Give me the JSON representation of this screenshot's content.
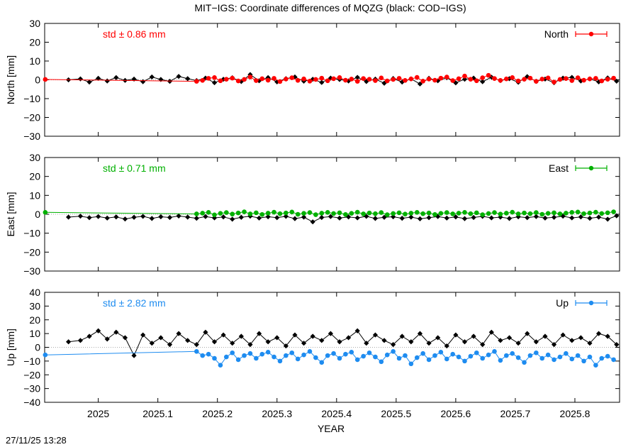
{
  "title": "MIT−IGS: Coordinate differences of MQZG (black: COD−IGS)",
  "footer_timestamp": "27/11/25 13:28",
  "xlabel": "YEAR",
  "colors": {
    "secondary_series": "#000000",
    "reference_line": "#aaaaaa"
  },
  "chart_data": [
    {
      "type": "line",
      "panel": "north",
      "ylabel": "North [mm]",
      "legend": "North",
      "legend_position": "top-right",
      "std_label": "std ± 0.86 mm",
      "color": "#ff0000",
      "xlim": [
        2024.91,
        2025.875
      ],
      "ylim": [
        -30,
        30
      ],
      "yticks": [
        -30,
        -20,
        -10,
        0,
        10,
        20,
        30
      ],
      "xticks": [
        2025,
        2025.1,
        2025.2,
        2025.3,
        2025.4,
        2025.5,
        2025.6,
        2025.7,
        2025.8
      ],
      "xtick_labels": [
        "2025",
        "2025.1",
        "2025.2",
        "2025.3",
        "2025.4",
        "2025.5",
        "2025.6",
        "2025.7",
        "2025.8"
      ],
      "grid": false,
      "series": [
        {
          "role": "MIT-IGS",
          "x": [
            2024.911,
            2025.165,
            2025.175,
            2025.185,
            2025.195,
            2025.205,
            2025.215,
            2025.225,
            2025.235,
            2025.245,
            2025.255,
            2025.265,
            2025.275,
            2025.285,
            2025.295,
            2025.305,
            2025.315,
            2025.325,
            2025.335,
            2025.345,
            2025.355,
            2025.365,
            2025.375,
            2025.385,
            2025.395,
            2025.405,
            2025.415,
            2025.425,
            2025.435,
            2025.445,
            2025.455,
            2025.465,
            2025.475,
            2025.485,
            2025.495,
            2025.505,
            2025.515,
            2025.525,
            2025.535,
            2025.545,
            2025.555,
            2025.565,
            2025.575,
            2025.585,
            2025.595,
            2025.605,
            2025.615,
            2025.625,
            2025.635,
            2025.645,
            2025.655,
            2025.665,
            2025.675,
            2025.685,
            2025.695,
            2025.705,
            2025.715,
            2025.725,
            2025.735,
            2025.745,
            2025.755,
            2025.765,
            2025.775,
            2025.785,
            2025.795,
            2025.805,
            2025.815,
            2025.825,
            2025.835,
            2025.845,
            2025.855,
            2025.865
          ],
          "y": [
            0.2,
            -0.8,
            -0.3,
            0.8,
            1.2,
            -0.5,
            0.3,
            0.9,
            -0.6,
            0.2,
            1.5,
            -0.4,
            0.6,
            -0.2,
            0.8,
            -0.9,
            0.4,
            1.1,
            -0.3,
            0.5,
            -0.7,
            0.2,
            0.9,
            -0.5,
            0.6,
            1.2,
            -0.2,
            0.4,
            -0.8,
            0.7,
            0.3,
            -0.4,
            1.0,
            -0.6,
            0.2,
            0.8,
            -0.3,
            0.5,
            1.3,
            -0.7,
            0.4,
            -0.2,
            0.9,
            1.5,
            -0.4,
            0.6,
            2.0,
            0.3,
            -0.5,
            1.1,
            2.4,
            0.7,
            -0.3,
            0.5,
            1.2,
            -0.6,
            0.3,
            0.9,
            -0.8,
            0.4,
            1.0,
            -1.2,
            0.2,
            0.7,
            -0.4,
            1.1,
            -0.2,
            0.5,
            0.8,
            -0.6,
            0.3,
            0.9
          ]
        },
        {
          "role": "COD-IGS",
          "x": [
            2024.95,
            2024.97,
            2024.985,
            2025.0,
            2025.015,
            2025.03,
            2025.045,
            2025.06,
            2025.075,
            2025.09,
            2025.105,
            2025.12,
            2025.135,
            2025.15,
            2025.165,
            2025.18,
            2025.195,
            2025.21,
            2025.225,
            2025.24,
            2025.255,
            2025.27,
            2025.285,
            2025.3,
            2025.315,
            2025.33,
            2025.345,
            2025.36,
            2025.375,
            2025.39,
            2025.405,
            2025.42,
            2025.435,
            2025.45,
            2025.465,
            2025.48,
            2025.495,
            2025.51,
            2025.525,
            2025.54,
            2025.555,
            2025.57,
            2025.585,
            2025.6,
            2025.615,
            2025.63,
            2025.645,
            2025.66,
            2025.675,
            2025.69,
            2025.705,
            2025.72,
            2025.735,
            2025.75,
            2025.765,
            2025.78,
            2025.795,
            2025.81,
            2025.825,
            2025.84,
            2025.855,
            2025.87
          ],
          "y": [
            0.0,
            0.5,
            -1.2,
            0.8,
            -0.6,
            1.2,
            -0.3,
            0.4,
            -1.0,
            1.5,
            0.2,
            -0.8,
            1.8,
            0.6,
            -0.4,
            0.9,
            -1.5,
            0.3,
            1.1,
            -0.9,
            2.8,
            -0.5,
            1.2,
            -1.1,
            0.6,
            1.5,
            -0.7,
            0.3,
            -1.4,
            0.9,
            0.2,
            -0.6,
            1.3,
            -0.9,
            0.4,
            -1.8,
            0.7,
            -1.2,
            0.5,
            -2.2,
            0.8,
            -0.5,
            1.1,
            -1.6,
            0.3,
            0.9,
            -1.0,
            1.4,
            -0.4,
            0.6,
            -1.3,
            1.7,
            -0.8,
            0.4,
            -1.5,
            0.9,
            1.3,
            -0.6,
            0.5,
            -1.1,
            1.0,
            -0.7
          ]
        }
      ]
    },
    {
      "type": "line",
      "panel": "east",
      "ylabel": "East [mm]",
      "legend": "East",
      "legend_position": "top-right",
      "std_label": "std ± 0.71 mm",
      "color": "#00b000",
      "xlim": [
        2024.91,
        2025.875
      ],
      "ylim": [
        -30,
        30
      ],
      "yticks": [
        -30,
        -20,
        -10,
        0,
        10,
        20,
        30
      ],
      "xticks": [
        2025,
        2025.1,
        2025.2,
        2025.3,
        2025.4,
        2025.5,
        2025.6,
        2025.7,
        2025.8
      ],
      "xtick_labels": [
        "2025",
        "2025.1",
        "2025.2",
        "2025.3",
        "2025.4",
        "2025.5",
        "2025.6",
        "2025.7",
        "2025.8"
      ],
      "grid": false,
      "series": [
        {
          "role": "MIT-IGS",
          "x": [
            2024.911,
            2025.165,
            2025.175,
            2025.185,
            2025.195,
            2025.205,
            2025.215,
            2025.225,
            2025.235,
            2025.245,
            2025.255,
            2025.265,
            2025.275,
            2025.285,
            2025.295,
            2025.305,
            2025.315,
            2025.325,
            2025.335,
            2025.345,
            2025.355,
            2025.365,
            2025.375,
            2025.385,
            2025.395,
            2025.405,
            2025.415,
            2025.425,
            2025.435,
            2025.445,
            2025.455,
            2025.465,
            2025.475,
            2025.485,
            2025.495,
            2025.505,
            2025.515,
            2025.525,
            2025.535,
            2025.545,
            2025.555,
            2025.565,
            2025.575,
            2025.585,
            2025.595,
            2025.605,
            2025.615,
            2025.625,
            2025.635,
            2025.645,
            2025.655,
            2025.665,
            2025.675,
            2025.685,
            2025.695,
            2025.705,
            2025.715,
            2025.725,
            2025.735,
            2025.745,
            2025.755,
            2025.765,
            2025.775,
            2025.785,
            2025.795,
            2025.805,
            2025.815,
            2025.825,
            2025.835,
            2025.845,
            2025.855,
            2025.865
          ],
          "y": [
            1.0,
            0.2,
            0.6,
            1.0,
            -0.3,
            0.5,
            0.9,
            0.1,
            0.7,
            1.3,
            0.2,
            0.8,
            -0.1,
            0.6,
            1.1,
            0.3,
            0.7,
            1.2,
            0.0,
            0.5,
            0.9,
            -0.2,
            0.6,
            1.0,
            0.4,
            0.8,
            -0.1,
            0.5,
            1.1,
            0.2,
            0.7,
            0.3,
            0.9,
            -0.2,
            0.4,
            0.8,
            0.1,
            0.6,
            1.0,
            0.3,
            0.7,
            -0.1,
            0.5,
            0.9,
            0.2,
            0.6,
            1.0,
            0.3,
            0.8,
            -0.2,
            0.4,
            0.9,
            0.1,
            0.6,
            1.1,
            0.2,
            0.7,
            0.3,
            0.9,
            0.0,
            0.5,
            0.8,
            0.2,
            0.6,
            1.0,
            1.2,
            0.3,
            0.7,
            1.1,
            0.4,
            0.8,
            1.3
          ]
        },
        {
          "role": "COD-IGS",
          "x": [
            2024.95,
            2024.97,
            2024.985,
            2025.0,
            2025.015,
            2025.03,
            2025.045,
            2025.06,
            2025.075,
            2025.09,
            2025.105,
            2025.12,
            2025.135,
            2025.15,
            2025.165,
            2025.18,
            2025.195,
            2025.21,
            2025.225,
            2025.24,
            2025.255,
            2025.27,
            2025.285,
            2025.3,
            2025.315,
            2025.33,
            2025.345,
            2025.36,
            2025.375,
            2025.39,
            2025.405,
            2025.42,
            2025.435,
            2025.45,
            2025.465,
            2025.48,
            2025.495,
            2025.51,
            2025.525,
            2025.54,
            2025.555,
            2025.57,
            2025.585,
            2025.6,
            2025.615,
            2025.63,
            2025.645,
            2025.66,
            2025.675,
            2025.69,
            2025.705,
            2025.72,
            2025.735,
            2025.75,
            2025.765,
            2025.78,
            2025.795,
            2025.81,
            2025.825,
            2025.84,
            2025.855,
            2025.87
          ],
          "y": [
            -1.5,
            -1.0,
            -1.8,
            -1.2,
            -2.0,
            -1.4,
            -2.5,
            -1.6,
            -1.1,
            -2.2,
            -1.3,
            -1.7,
            -0.9,
            -1.5,
            -2.1,
            -1.2,
            -1.9,
            -1.4,
            -2.6,
            -1.6,
            -1.0,
            -2.0,
            -1.3,
            -1.8,
            -1.1,
            -2.3,
            -1.5,
            -4.0,
            -1.7,
            -1.2,
            -2.0,
            -1.4,
            -1.9,
            -1.1,
            -2.2,
            -1.6,
            -1.3,
            -2.1,
            -1.5,
            -2.4,
            -1.8,
            -1.2,
            -2.0,
            -1.4,
            -2.3,
            -1.7,
            -1.1,
            -1.9,
            -1.5,
            -2.2,
            -1.3,
            -1.8,
            -1.2,
            -2.0,
            -1.6,
            -1.0,
            -1.9,
            -1.4,
            -2.1,
            -1.5,
            -2.6,
            -0.8
          ]
        }
      ]
    },
    {
      "type": "line",
      "panel": "up",
      "ylabel": "Up [mm]",
      "legend": "Up",
      "legend_position": "top-right",
      "std_label": "std ± 2.82 mm",
      "color": "#1e8cf0",
      "xlim": [
        2024.91,
        2025.875
      ],
      "ylim": [
        -40,
        40
      ],
      "yticks": [
        -40,
        -30,
        -20,
        -10,
        0,
        10,
        20,
        30,
        40
      ],
      "xticks": [
        2025,
        2025.1,
        2025.2,
        2025.3,
        2025.4,
        2025.5,
        2025.6,
        2025.7,
        2025.8
      ],
      "xtick_labels": [
        "2025",
        "2025.1",
        "2025.2",
        "2025.3",
        "2025.4",
        "2025.5",
        "2025.6",
        "2025.7",
        "2025.8"
      ],
      "grid": false,
      "series": [
        {
          "role": "MIT-IGS",
          "x": [
            2024.911,
            2025.165,
            2025.175,
            2025.185,
            2025.195,
            2025.205,
            2025.215,
            2025.225,
            2025.235,
            2025.245,
            2025.255,
            2025.265,
            2025.275,
            2025.285,
            2025.295,
            2025.305,
            2025.315,
            2025.325,
            2025.335,
            2025.345,
            2025.355,
            2025.365,
            2025.375,
            2025.385,
            2025.395,
            2025.405,
            2025.415,
            2025.425,
            2025.435,
            2025.445,
            2025.455,
            2025.465,
            2025.475,
            2025.485,
            2025.495,
            2025.505,
            2025.515,
            2025.525,
            2025.535,
            2025.545,
            2025.555,
            2025.565,
            2025.575,
            2025.585,
            2025.595,
            2025.605,
            2025.615,
            2025.625,
            2025.635,
            2025.645,
            2025.655,
            2025.665,
            2025.675,
            2025.685,
            2025.695,
            2025.705,
            2025.715,
            2025.725,
            2025.735,
            2025.745,
            2025.755,
            2025.765,
            2025.775,
            2025.785,
            2025.795,
            2025.805,
            2025.815,
            2025.825,
            2025.835,
            2025.845,
            2025.855,
            2025.865
          ],
          "y": [
            -5.5,
            -3.0,
            -6.0,
            -5.0,
            -8.0,
            -13.0,
            -7.0,
            -4.0,
            -9.0,
            -6.0,
            -4.5,
            -8.0,
            -5.0,
            -3.5,
            -7.0,
            -10.0,
            -6.0,
            -4.0,
            -8.5,
            -5.5,
            -3.0,
            -7.5,
            -11.0,
            -6.0,
            -4.5,
            -8.0,
            -5.0,
            -3.5,
            -9.0,
            -6.5,
            -4.0,
            -7.0,
            -10.5,
            -5.5,
            -3.0,
            -8.0,
            -6.0,
            -12.0,
            -7.5,
            -4.5,
            -9.0,
            -6.0,
            -3.5,
            -8.5,
            -5.0,
            -7.0,
            -10.0,
            -6.5,
            -4.0,
            -8.0,
            -5.5,
            -3.0,
            -9.5,
            -6.0,
            -4.5,
            -7.5,
            -11.0,
            -6.0,
            -4.0,
            -8.0,
            -5.5,
            -9.0,
            -7.0,
            -4.5,
            -8.5,
            -6.0,
            -10.0,
            -7.0,
            -13.0,
            -8.0,
            -6.5,
            -9.0
          ]
        },
        {
          "role": "COD-IGS",
          "x": [
            2024.95,
            2024.97,
            2024.985,
            2025.0,
            2025.015,
            2025.03,
            2025.045,
            2025.06,
            2025.075,
            2025.09,
            2025.105,
            2025.12,
            2025.135,
            2025.15,
            2025.165,
            2025.18,
            2025.195,
            2025.21,
            2025.225,
            2025.24,
            2025.255,
            2025.27,
            2025.285,
            2025.3,
            2025.315,
            2025.33,
            2025.345,
            2025.36,
            2025.375,
            2025.39,
            2025.405,
            2025.42,
            2025.435,
            2025.45,
            2025.465,
            2025.48,
            2025.495,
            2025.51,
            2025.525,
            2025.54,
            2025.555,
            2025.57,
            2025.585,
            2025.6,
            2025.615,
            2025.63,
            2025.645,
            2025.66,
            2025.675,
            2025.69,
            2025.705,
            2025.72,
            2025.735,
            2025.75,
            2025.765,
            2025.78,
            2025.795,
            2025.81,
            2025.825,
            2025.84,
            2025.855,
            2025.87
          ],
          "y": [
            4.0,
            5.0,
            8.0,
            12.0,
            6.0,
            11.0,
            7.0,
            -6.0,
            9.0,
            3.0,
            7.0,
            2.0,
            10.0,
            5.0,
            2.0,
            11.0,
            4.0,
            9.0,
            3.0,
            8.0,
            2.0,
            10.0,
            4.0,
            7.0,
            1.0,
            9.0,
            3.0,
            8.0,
            5.0,
            10.0,
            4.0,
            7.0,
            12.0,
            3.0,
            9.0,
            5.0,
            2.0,
            8.0,
            4.0,
            10.0,
            3.0,
            7.0,
            1.0,
            9.0,
            4.0,
            8.0,
            2.0,
            11.0,
            5.0,
            7.0,
            3.0,
            10.0,
            4.0,
            8.0,
            2.0,
            9.0,
            5.0,
            7.0,
            3.0,
            10.0,
            8.0,
            2.0
          ]
        }
      ]
    }
  ]
}
